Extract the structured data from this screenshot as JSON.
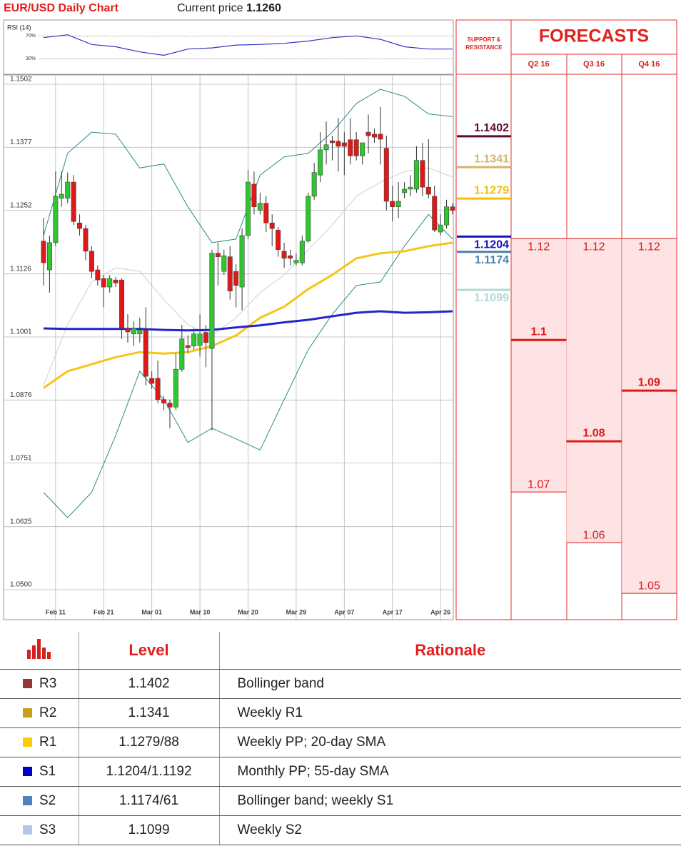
{
  "header": {
    "title": "EUR/USD Daily Chart",
    "price_label": "Current price",
    "price": "1.1260"
  },
  "chart_data": [
    {
      "type": "candlestick",
      "categories": [
        null,
        null,
        "Feb 11",
        null,
        null,
        null,
        null,
        null,
        null,
        null,
        "Feb 21",
        null,
        null,
        null,
        null,
        null,
        null,
        null,
        "Mar 01",
        null,
        null,
        null,
        null,
        null,
        null,
        null,
        "Mar 10",
        null,
        null,
        null,
        null,
        null,
        null,
        null,
        "Mar 20",
        null,
        null,
        null,
        null,
        null,
        null,
        null,
        "Mar 29",
        null,
        null,
        null,
        null,
        null,
        null,
        null,
        "Apr 07",
        null,
        null,
        null,
        null,
        null,
        null,
        null,
        "Apr 17",
        null,
        null,
        null,
        null,
        null,
        null,
        null,
        "Apr 26",
        null,
        null
      ],
      "open": [
        1.1191,
        1.1134,
        1.1188,
        1.1276,
        1.1276,
        1.1308,
        1.1227,
        1.1216,
        1.1171,
        1.1134,
        1.1117,
        1.11,
        1.1114,
        1.1114,
        1.1018,
        1.1007,
        1.1007,
        1.1015,
        1.0919,
        1.0919,
        1.0877,
        1.087,
        1.0862,
        1.0937,
        1.0984,
        1.0983,
        1.0984,
        1.101,
        1.0978,
        1.1167,
        1.1131,
        1.116,
        1.1131,
        1.11,
        1.1202,
        1.1304,
        1.1252,
        1.1266,
        1.1227,
        1.1213,
        1.1171,
        1.1162,
        1.1148,
        1.1148,
        1.1191,
        1.128,
        1.1322,
        1.1372,
        1.139,
        1.1389,
        1.1386,
        1.1392,
        1.1392,
        1.136,
        1.1407,
        1.1403,
        1.1403,
        1.1375,
        1.127,
        1.1259,
        1.1287,
        1.1294,
        1.1294,
        1.1351,
        1.1298,
        1.128,
        1.1209,
        1.1223,
        1.1259
      ],
      "high": [
        1.1237,
        1.1202,
        1.1329,
        1.1329,
        1.1327,
        1.1322,
        1.1244,
        1.1223,
        1.1181,
        1.1143,
        1.1124,
        1.1124,
        1.112,
        1.1117,
        1.1046,
        1.1032,
        1.1039,
        1.106,
        1.0933,
        1.0954,
        1.0884,
        1.0877,
        1.0969,
        1.1025,
        1.1004,
        1.1018,
        1.1046,
        1.1025,
        1.1174,
        1.1188,
        1.1174,
        1.1181,
        1.1145,
        1.1216,
        1.1332,
        1.1329,
        1.1287,
        1.128,
        1.1244,
        1.1219,
        1.1188,
        1.1174,
        1.1167,
        1.1202,
        1.1287,
        1.1346,
        1.1407,
        1.1428,
        1.14,
        1.1435,
        1.1407,
        1.1435,
        1.1407,
        1.1386,
        1.1442,
        1.1414,
        1.1457,
        1.14,
        1.1301,
        1.1308,
        1.1308,
        1.1322,
        1.1379,
        1.1386,
        1.1393,
        1.1301,
        1.1244,
        1.1273,
        1.1266
      ],
      "low": [
        1.1103,
        1.1089,
        1.1181,
        1.1259,
        1.1266,
        1.1223,
        1.1202,
        1.1153,
        1.1117,
        1.1103,
        1.106,
        1.1089,
        1.11,
        1.0997,
        1.099,
        1.0983,
        1.099,
        1.0905,
        1.0898,
        1.087,
        1.0856,
        1.082,
        1.0856,
        1.0932,
        1.0969,
        1.0976,
        1.0962,
        1.0941,
        1.0816,
        1.1103,
        1.1124,
        1.1075,
        1.106,
        1.1054,
        1.1195,
        1.1244,
        1.1244,
        1.1209,
        1.1181,
        1.116,
        1.1138,
        1.1143,
        1.1143,
        1.1143,
        1.1188,
        1.1273,
        1.1308,
        1.1343,
        1.1351,
        1.1329,
        1.1322,
        1.1343,
        1.1351,
        1.1343,
        1.1365,
        1.1386,
        1.1343,
        1.1252,
        1.123,
        1.1237,
        1.1276,
        1.128,
        1.1287,
        1.128,
        1.1276,
        1.1209,
        1.1202,
        1.1216,
        1.1244
      ],
      "close": [
        1.1148,
        1.1188,
        1.128,
        1.1284,
        1.1308,
        1.123,
        1.1216,
        1.1171,
        1.1131,
        1.1114,
        1.11,
        1.1117,
        1.1108,
        1.1018,
        1.1011,
        1.1018,
        1.1015,
        1.0923,
        1.0909,
        1.0877,
        1.087,
        1.0862,
        1.0937,
        1.0997,
        1.098,
        1.1007,
        1.1007,
        1.099,
        1.1167,
        1.116,
        1.1162,
        1.1092,
        1.1103,
        1.1202,
        1.1308,
        1.1259,
        1.1266,
        1.1227,
        1.1216,
        1.1174,
        1.1157,
        1.1157,
        1.1153,
        1.1191,
        1.128,
        1.1327,
        1.1372,
        1.1382,
        1.1386,
        1.1379,
        1.1379,
        1.136,
        1.136,
        1.1386,
        1.14,
        1.1397,
        1.1393,
        1.127,
        1.1259,
        1.127,
        1.1294,
        1.1298,
        1.1351,
        1.1298,
        1.1284,
        1.1213,
        1.1223,
        1.1259,
        1.1252
      ],
      "up_color": "#2ec82e",
      "down_color": "#e01818",
      "overlays": [
        {
          "color": "#cfcfcf",
          "width": 1,
          "x": [
            0,
            4,
            8,
            12,
            16,
            20,
            24,
            28,
            32,
            36,
            40,
            44,
            48,
            52,
            56,
            60,
            64,
            68
          ],
          "values": [
            1.0905,
            1.1025,
            1.111,
            1.1138,
            1.1131,
            1.1075,
            1.1025,
            1.1004,
            1.1039,
            1.1089,
            1.1124,
            1.1174,
            1.1223,
            1.128,
            1.1308,
            1.1329,
            1.1336,
            1.1318
          ]
        },
        {
          "color": "#2a8c8c",
          "width": 1,
          "x": [
            0,
            4,
            8,
            12,
            16,
            20,
            24,
            28,
            32,
            36,
            40,
            44,
            48,
            52,
            56,
            60,
            64,
            68
          ],
          "values": [
            1.1202,
            1.1365,
            1.1407,
            1.1403,
            1.1336,
            1.1344,
            1.1259,
            1.1188,
            1.1195,
            1.1322,
            1.1358,
            1.1365,
            1.1407,
            1.1464,
            1.1492,
            1.1478,
            1.1443,
            1.1438
          ]
        },
        {
          "color": "#2a8c8c",
          "width": 1,
          "x": [
            0,
            4,
            8,
            12,
            16,
            20,
            24,
            28,
            32,
            36,
            40,
            44,
            48,
            52,
            56,
            60,
            64,
            68
          ],
          "values": [
            1.0693,
            1.0643,
            1.0693,
            1.0806,
            1.0933,
            1.0877,
            1.0792,
            1.082,
            1.0799,
            1.0777,
            1.0877,
            1.0976,
            1.1046,
            1.1103,
            1.111,
            1.1181,
            1.1244,
            1.1195
          ]
        },
        {
          "color": "#f5c518",
          "width": 3,
          "x": [
            0,
            4,
            8,
            12,
            16,
            20,
            24,
            28,
            32,
            36,
            40,
            44,
            48,
            52,
            56,
            60,
            64,
            68
          ],
          "values": [
            1.09,
            1.0933,
            1.0947,
            1.0961,
            1.0971,
            1.0968,
            1.0971,
            1.0983,
            1.1004,
            1.1039,
            1.1061,
            1.1096,
            1.1124,
            1.1157,
            1.1167,
            1.1171,
            1.1181,
            1.1188
          ]
        },
        {
          "color": "#2424cc",
          "width": 3,
          "x": [
            0,
            4,
            8,
            12,
            16,
            20,
            24,
            28,
            32,
            36,
            40,
            44,
            48,
            52,
            56,
            60,
            64,
            68
          ],
          "values": [
            1.1018,
            1.1017,
            1.1017,
            1.1017,
            1.1017,
            1.1015,
            1.1014,
            1.1015,
            1.102,
            1.1024,
            1.103,
            1.1035,
            1.1042,
            1.1049,
            1.1052,
            1.1049,
            1.105,
            1.1052
          ]
        }
      ],
      "ylim": [
        1.05,
        1.1502
      ],
      "yticks": [
        1.1502,
        1.1377,
        1.1252,
        1.1126,
        1.1001,
        1.0876,
        1.0751,
        1.0625,
        {
          "value": 1.05,
          "label": "1.0500"
        }
      ],
      "grid": true
    },
    {
      "type": "line",
      "title": "RSI (14)",
      "color": "#3434c4",
      "x": [
        0,
        4,
        8,
        12,
        16,
        20,
        24,
        28,
        32,
        36,
        40,
        44,
        48,
        52,
        56,
        60,
        64,
        68
      ],
      "values": [
        67,
        72,
        55,
        51,
        42,
        36,
        47,
        49,
        54,
        55,
        57,
        61,
        67,
        70,
        64,
        51,
        47,
        47
      ],
      "ylim": [
        4,
        98
      ],
      "yticks": [
        {
          "value": 70,
          "label": "70%"
        },
        {
          "value": 30,
          "label": "30%"
        }
      ]
    },
    {
      "type": "forecast",
      "sr_title": "SUPPORT & RESISTANCE",
      "title": "FORECASTS",
      "ylim": [
        1.0448,
        1.1523
      ],
      "levels": [
        {
          "value": 1.1402,
          "color": "#5c0a34"
        },
        {
          "value": 1.1341,
          "color": "#d6b468"
        },
        {
          "value": 1.1279,
          "color": "#f0c000"
        },
        {
          "value": 1.1204,
          "color": "#1414c0"
        },
        {
          "value": 1.1174,
          "color": "#4a80a8"
        },
        {
          "value": 1.1099,
          "color": "#b2d8d6"
        }
      ],
      "categories": [
        "Q2 16",
        "Q3 16",
        "Q4 16"
      ],
      "high": [
        1.12,
        1.12,
        1.12
      ],
      "mid": [
        1.1,
        1.08,
        1.09
      ],
      "low": [
        1.07,
        1.06,
        1.05
      ],
      "color": "#e01818",
      "fill": "#fde3e3"
    }
  ],
  "table": {
    "header": [
      "Level",
      "Rationale"
    ],
    "rows": [
      {
        "name": "R3",
        "color": "#953735",
        "level": "1.1402",
        "rationale": "Bollinger band"
      },
      {
        "name": "R2",
        "color": "#c9a00e",
        "level": "1.1341",
        "rationale": "Weekly R1"
      },
      {
        "name": "R1",
        "color": "#ffcc00",
        "level": "1.1279/88",
        "rationale": "Weekly PP; 20-day SMA"
      },
      {
        "name": "S1",
        "color": "#0000cc",
        "level": "1.1204/1.1192",
        "rationale": "Monthly PP; 55-day SMA"
      },
      {
        "name": "S2",
        "color": "#4f81bd",
        "level": "1.1174/61",
        "rationale": "Bollinger band; weekly S1"
      },
      {
        "name": "S3",
        "color": "#b4c7e7",
        "level": "1.1099",
        "rationale": "Weekly S2"
      }
    ]
  }
}
